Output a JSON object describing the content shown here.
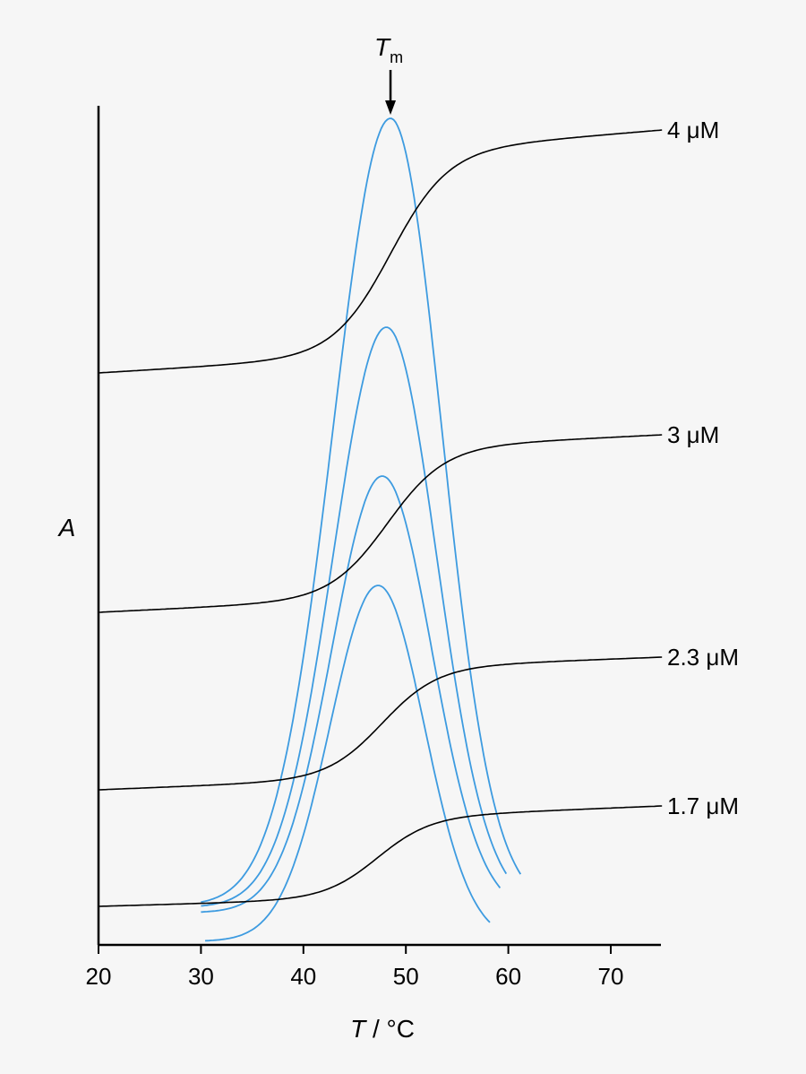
{
  "chart_data": {
    "type": "line",
    "xlabel_var": "T",
    "xlabel_unit": " / °C",
    "ylabel": "A",
    "xlim": [
      20,
      75
    ],
    "x_ticks": [
      20,
      30,
      40,
      50,
      60,
      70
    ],
    "tm_label": "T",
    "tm_sub": "m",
    "tm_x": 48.5,
    "series": [
      {
        "name": "4 μM",
        "Tm": 48.5,
        "base": 0.0,
        "height": 1.0,
        "slope_lo": 0.3,
        "slope_hi": 0.06,
        "width": 2.8
      },
      {
        "name": "3 μM",
        "Tm": 48.2,
        "base": 0.0,
        "height": 0.76,
        "slope_lo": 0.2,
        "slope_hi": 0.05,
        "width": 2.8
      },
      {
        "name": "2.3 μM",
        "Tm": 47.7,
        "base": 0.0,
        "height": 0.58,
        "slope_lo": 0.12,
        "slope_hi": 0.04,
        "width": 2.7
      },
      {
        "name": "1.7 μM",
        "Tm": 47.2,
        "base": 0.0,
        "height": 0.43,
        "slope_lo": 0.09,
        "slope_hi": 0.03,
        "width": 2.6
      }
    ],
    "derivative_peaks": [
      {
        "peak_x": 48.5,
        "amplitude": 1.0,
        "x_start": 30.0,
        "x_end": 61.3
      },
      {
        "peak_x": 48.1,
        "amplitude": 0.75,
        "x_start": 30.0,
        "x_end": 59.8
      },
      {
        "peak_x": 47.7,
        "amplitude": 0.58,
        "x_start": 30.0,
        "x_end": 59.2
      },
      {
        "peak_x": 47.3,
        "amplitude": 0.45,
        "x_start": 30.4,
        "x_end": 58.2
      }
    ]
  }
}
